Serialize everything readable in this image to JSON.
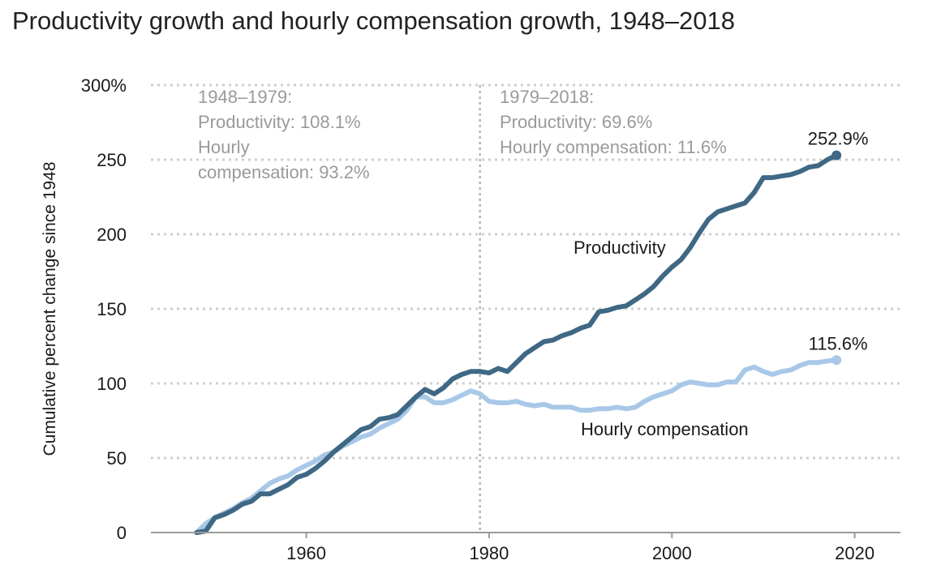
{
  "chart_data": {
    "type": "line",
    "title": "Productivity growth and hourly compensation growth, 1948–2018",
    "ylabel": "Cumulative percent change since 1948",
    "xlabel": "",
    "xlim": [
      1943,
      2025
    ],
    "ylim": [
      0,
      300
    ],
    "grid": true,
    "x_ticks": [
      1960,
      1980,
      2000,
      2020
    ],
    "y_ticks": [
      0,
      50,
      100,
      150,
      200,
      250,
      300
    ],
    "y_tick_labels": [
      "0",
      "50",
      "100",
      "150",
      "200",
      "250",
      "300%"
    ],
    "vline_x": 1979,
    "annotations": [
      {
        "lines": [
          "1948–1979:",
          "Productivity: 108.1%",
          "Hourly",
          "compensation: 93.2%"
        ]
      },
      {
        "lines": [
          "1979–2018:",
          "Productivity: 69.6%",
          "Hourly compensation: 11.6%"
        ]
      }
    ],
    "colors": {
      "productivity": "#3f6885",
      "compensation": "#a9c8e8",
      "grid": "#cfcfcf",
      "annotation": "#9a9a9a"
    },
    "series": [
      {
        "name": "Productivity",
        "end_label": "252.9%",
        "x": [
          1948,
          1949,
          1950,
          1951,
          1952,
          1953,
          1954,
          1955,
          1956,
          1957,
          1958,
          1959,
          1960,
          1961,
          1962,
          1963,
          1964,
          1965,
          1966,
          1967,
          1968,
          1969,
          1970,
          1971,
          1972,
          1973,
          1974,
          1975,
          1976,
          1977,
          1978,
          1979,
          1980,
          1981,
          1982,
          1983,
          1984,
          1985,
          1986,
          1987,
          1988,
          1989,
          1990,
          1991,
          1992,
          1993,
          1994,
          1995,
          1996,
          1997,
          1998,
          1999,
          2000,
          2001,
          2002,
          2003,
          2004,
          2005,
          2006,
          2007,
          2008,
          2009,
          2010,
          2011,
          2012,
          2013,
          2014,
          2015,
          2016,
          2017,
          2018
        ],
        "values": [
          0,
          1,
          10,
          12,
          15,
          19,
          21,
          26,
          26,
          29,
          32,
          37,
          39,
          43,
          48,
          54,
          59,
          64,
          69,
          71,
          76,
          77,
          79,
          85,
          91,
          96,
          93,
          97,
          103,
          106,
          108,
          108,
          107,
          110,
          108,
          114,
          120,
          124,
          128,
          129,
          132,
          134,
          137,
          139,
          148,
          149,
          151,
          152,
          156,
          160,
          165,
          172,
          178,
          183,
          191,
          201,
          210,
          215,
          217,
          219,
          221,
          228,
          238,
          238,
          239,
          240,
          242,
          245,
          246,
          250,
          252.9
        ]
      },
      {
        "name": "Hourly compensation",
        "end_label": "115.6%",
        "x": [
          1948,
          1949,
          1950,
          1951,
          1952,
          1953,
          1954,
          1955,
          1956,
          1957,
          1958,
          1959,
          1960,
          1961,
          1962,
          1963,
          1964,
          1965,
          1966,
          1967,
          1968,
          1969,
          1970,
          1971,
          1972,
          1973,
          1974,
          1975,
          1976,
          1977,
          1978,
          1979,
          1980,
          1981,
          1982,
          1983,
          1984,
          1985,
          1986,
          1987,
          1988,
          1989,
          1990,
          1991,
          1992,
          1993,
          1994,
          1995,
          1996,
          1997,
          1998,
          1999,
          2000,
          2001,
          2002,
          2003,
          2004,
          2005,
          2006,
          2007,
          2008,
          2009,
          2010,
          2011,
          2012,
          2013,
          2014,
          2015,
          2016,
          2017,
          2018
        ],
        "values": [
          0,
          6,
          10,
          13,
          16,
          20,
          23,
          28,
          33,
          36,
          38,
          42,
          45,
          48,
          52,
          54,
          58,
          61,
          64,
          66,
          70,
          73,
          76,
          82,
          91,
          91,
          87,
          87,
          89,
          92,
          95,
          93,
          88,
          87,
          87,
          88,
          86,
          85,
          86,
          84,
          84,
          84,
          82,
          82,
          83,
          83,
          84,
          83,
          84,
          88,
          91,
          93,
          95,
          99,
          101,
          100,
          99,
          99,
          101,
          101,
          109,
          111,
          108,
          106,
          108,
          109,
          112,
          114,
          114,
          115,
          115.6
        ]
      }
    ]
  }
}
